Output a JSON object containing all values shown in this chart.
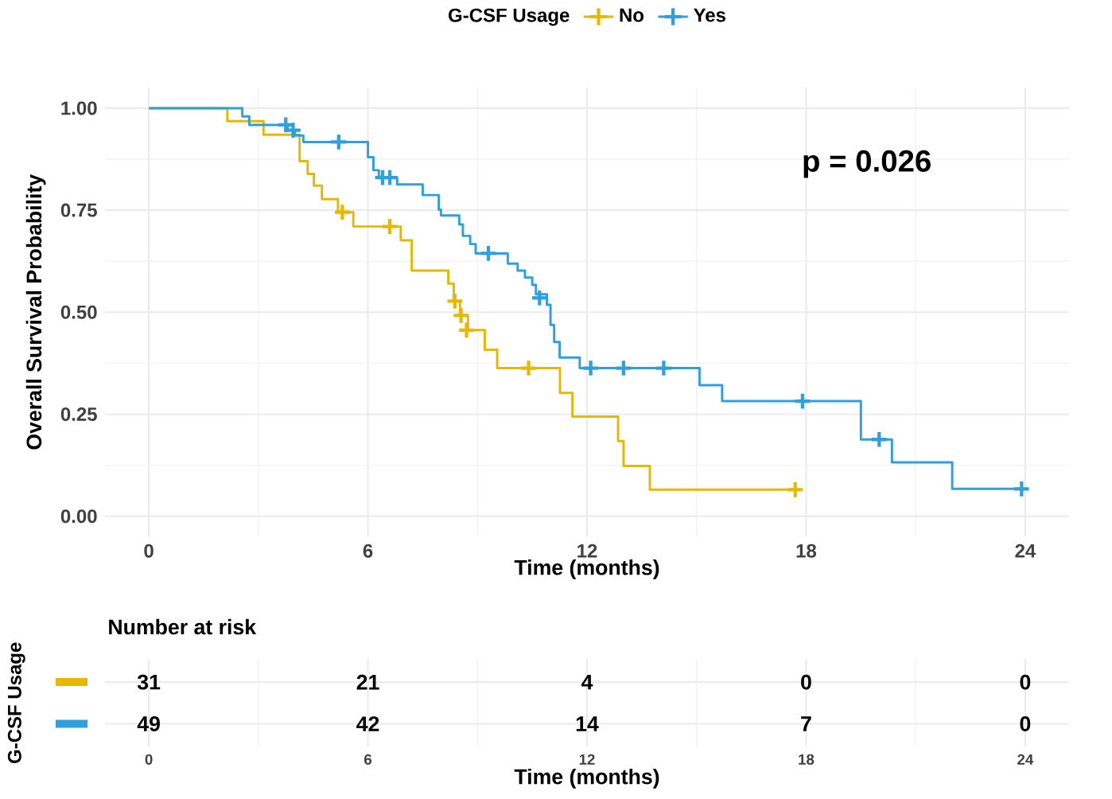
{
  "chart_data": [
    {
      "type": "step",
      "xlabel": "Time (months)",
      "ylabel": "Overall Survival Probability",
      "legend_title": "G-CSF Usage",
      "legend": "top",
      "grid": true,
      "xlim": [
        -1.2,
        25.2
      ],
      "ylim": [
        -0.05,
        1.05
      ],
      "xticks": [
        0,
        6,
        12,
        18,
        24
      ],
      "yticks": [
        {
          "value": 0,
          "label": "0.00"
        },
        {
          "value": 0.25,
          "label": "0.25"
        },
        {
          "value": 0.5,
          "label": "0.50"
        },
        {
          "value": 0.75,
          "label": "0.75"
        },
        {
          "value": 1,
          "label": "1.00"
        }
      ],
      "annotations": [
        "p = 0.026"
      ],
      "series": [
        {
          "name": "No",
          "color": "#e7b800",
          "x": [
            0,
            2.15,
            3.14,
            4.13,
            4.35,
            4.52,
            4.74,
            5.18,
            5.6,
            6.9,
            7.2,
            8.2,
            8.35,
            8.52,
            8.74,
            9.2,
            9.54,
            11.26,
            11.6,
            12.85,
            13.0,
            13.72,
            17.73
          ],
          "values": [
            1.0,
            0.968,
            0.935,
            0.87,
            0.839,
            0.81,
            0.777,
            0.745,
            0.71,
            0.676,
            0.602,
            0.57,
            0.527,
            0.492,
            0.456,
            0.408,
            0.363,
            0.302,
            0.244,
            0.184,
            0.123,
            0.065,
            0.065
          ]
        },
        {
          "name": "Yes",
          "color": "#2e9fdf",
          "x": [
            0,
            2.56,
            2.75,
            3.8,
            4.0,
            4.23,
            6.0,
            6.15,
            6.3,
            6.8,
            7.5,
            7.94,
            8.0,
            8.5,
            8.6,
            8.8,
            8.95,
            9.83,
            10.1,
            10.3,
            10.5,
            10.6,
            10.9,
            11.0,
            11.1,
            11.25,
            11.8,
            15.08,
            15.7,
            19.5,
            20.35,
            22.0,
            24.0
          ],
          "values": [
            1.0,
            0.98,
            0.959,
            0.946,
            0.933,
            0.917,
            0.88,
            0.848,
            0.83,
            0.813,
            0.787,
            0.751,
            0.737,
            0.715,
            0.687,
            0.667,
            0.644,
            0.619,
            0.602,
            0.585,
            0.567,
            0.544,
            0.518,
            0.469,
            0.427,
            0.389,
            0.363,
            0.321,
            0.282,
            0.188,
            0.132,
            0.067,
            0.067
          ]
        },
        {
          "type": "scatter",
          "marker": "cross",
          "color": "#e7b800",
          "x": [
            5.3,
            6.6,
            8.38,
            8.55,
            8.7,
            10.4,
            17.7
          ],
          "values": [
            0.745,
            0.71,
            0.527,
            0.492,
            0.456,
            0.363,
            0.065
          ]
        },
        {
          "type": "scatter",
          "marker": "cross",
          "color": "#2e9fdf",
          "x": [
            3.75,
            3.95,
            5.2,
            6.4,
            6.6,
            9.3,
            10.7,
            12.1,
            13.0,
            14.1,
            17.9,
            20.0,
            23.9
          ],
          "values": [
            0.959,
            0.946,
            0.917,
            0.83,
            0.83,
            0.644,
            0.535,
            0.363,
            0.363,
            0.363,
            0.282,
            0.188,
            0.067
          ]
        }
      ]
    },
    {
      "type": "heatmap",
      "title": "Number at risk",
      "ylabel": "G-CSF Usage",
      "xlabel": "Time (months)",
      "data_labels": true,
      "grid": true,
      "categories": [
        "0",
        "6",
        "12",
        "18",
        "24"
      ],
      "y_categories": [
        null,
        null
      ],
      "cells": [
        [
          31,
          21,
          4,
          0,
          0
        ],
        [
          49,
          42,
          14,
          7,
          0
        ]
      ]
    }
  ]
}
